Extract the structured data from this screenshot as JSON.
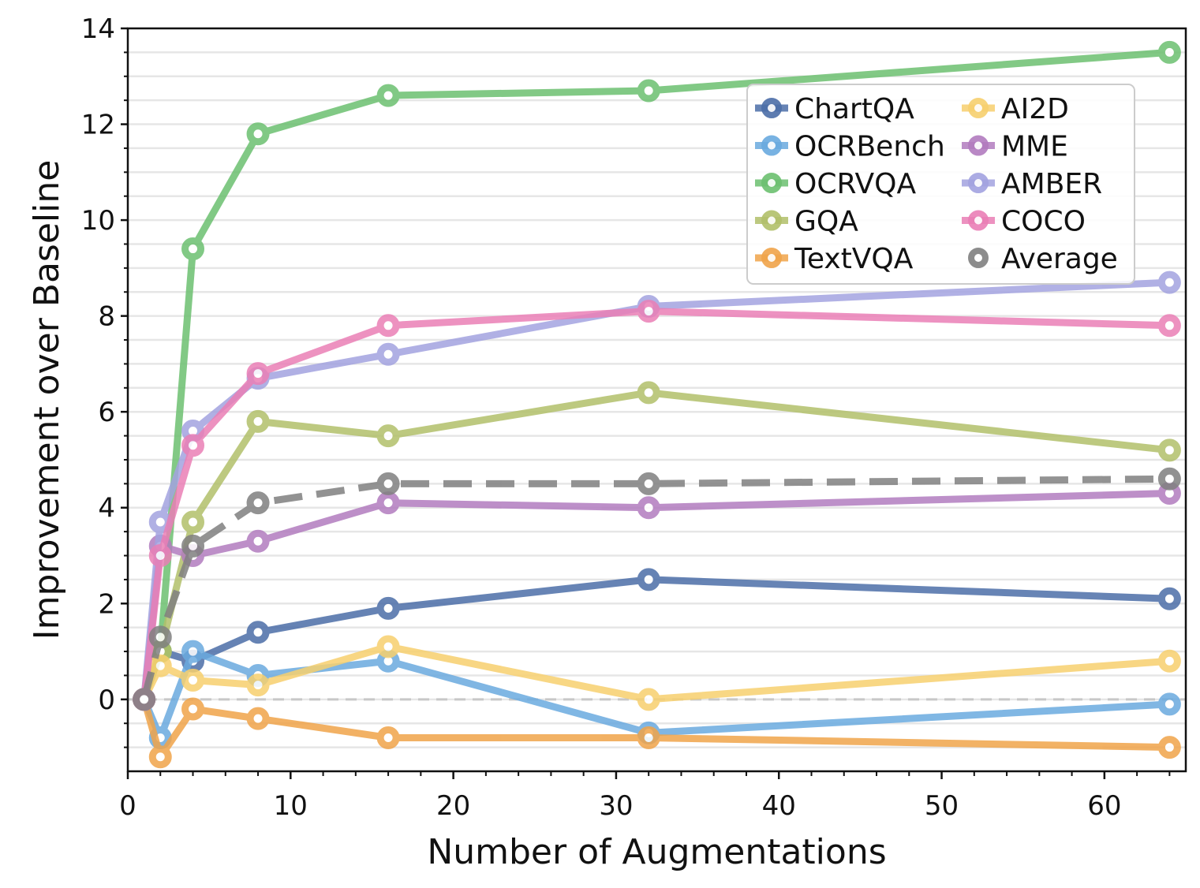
{
  "chart_data": {
    "type": "line",
    "title": "",
    "xlabel": "Number of Augmentations",
    "ylabel": "Improvement over Baseline",
    "xlim": [
      0,
      65
    ],
    "ylim": [
      -1.5,
      14
    ],
    "xticks": [
      0,
      10,
      20,
      30,
      40,
      50,
      60
    ],
    "yticks": [
      0,
      2,
      4,
      6,
      8,
      10,
      12,
      14
    ],
    "xtick_labels": [
      "0",
      "10",
      "20",
      "30",
      "40",
      "50",
      "60"
    ],
    "ytick_labels": [
      "0",
      "2",
      "4",
      "6",
      "8",
      "10",
      "12",
      "14"
    ],
    "grid": true,
    "legend_position": "top-right",
    "x": [
      1,
      2,
      4,
      8,
      16,
      32,
      64
    ],
    "series": [
      {
        "name": "ChartQA",
        "color": "#4c6ea8",
        "dashed": false,
        "values": [
          0,
          1.0,
          0.8,
          1.4,
          1.9,
          2.5,
          2.1
        ]
      },
      {
        "name": "OCRBench",
        "color": "#6aaadf",
        "dashed": false,
        "values": [
          0,
          -0.8,
          1.0,
          0.5,
          0.8,
          -0.7,
          -0.1
        ]
      },
      {
        "name": "OCRVQA",
        "color": "#6cc070",
        "dashed": false,
        "values": [
          0,
          1.0,
          9.4,
          11.8,
          12.6,
          12.7,
          13.5
        ]
      },
      {
        "name": "GQA",
        "color": "#b2c06a",
        "dashed": false,
        "values": [
          0,
          1.0,
          3.7,
          5.8,
          5.5,
          6.4,
          5.2
        ]
      },
      {
        "name": "TextVQA",
        "color": "#f0a44a",
        "dashed": false,
        "values": [
          0,
          -1.2,
          -0.2,
          -0.4,
          -0.8,
          -0.8,
          -1.0
        ]
      },
      {
        "name": "AI2D",
        "color": "#f7d06e",
        "dashed": false,
        "values": [
          0,
          0.7,
          0.4,
          0.3,
          1.1,
          0.0,
          0.8
        ]
      },
      {
        "name": "MME",
        "color": "#b27cbf",
        "dashed": false,
        "values": [
          0,
          3.2,
          3.0,
          3.3,
          4.1,
          4.0,
          4.3
        ]
      },
      {
        "name": "AMBER",
        "color": "#a3a3e0",
        "dashed": false,
        "values": [
          0,
          3.7,
          5.6,
          6.7,
          7.2,
          8.2,
          8.7
        ]
      },
      {
        "name": "COCO",
        "color": "#ea7fb6",
        "dashed": false,
        "values": [
          0,
          3.0,
          5.3,
          6.8,
          7.8,
          8.1,
          7.8
        ]
      },
      {
        "name": "Average",
        "color": "#808080",
        "dashed": true,
        "values": [
          0,
          1.3,
          3.2,
          4.1,
          4.5,
          4.5,
          4.6
        ]
      }
    ],
    "baseline": {
      "value": 0,
      "color": "#c8c8c8",
      "dashed": true
    }
  }
}
